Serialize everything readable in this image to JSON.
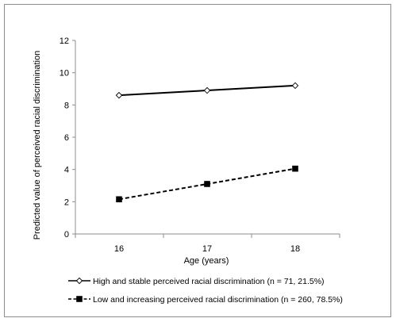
{
  "chart_data": {
    "type": "line",
    "title": "",
    "xlabel": "Age (years)",
    "ylabel": "Predicted  value of perceived racial discrimination",
    "x": [
      16,
      17,
      18
    ],
    "x_tick_labels": [
      "16",
      "17",
      "18"
    ],
    "ylim": [
      0,
      12
    ],
    "y_ticks": [
      0,
      2,
      4,
      6,
      8,
      10,
      12
    ],
    "y_tick_labels": [
      "0",
      "2",
      "4",
      "6",
      "8",
      "10",
      "12"
    ],
    "grid": false,
    "legend_position": "bottom",
    "series": [
      {
        "name": "High and stable perceived racial discrimination (n = 71, 21.5%)",
        "values": [
          8.6,
          8.9,
          9.2
        ],
        "line_style": "solid",
        "marker": "open-diamond",
        "color": "#000000"
      },
      {
        "name": "Low and increasing perceived  racial discrimination (n = 260, 78.5%)",
        "values": [
          2.15,
          3.1,
          4.05
        ],
        "line_style": "dashed",
        "marker": "filled-square",
        "color": "#000000"
      }
    ]
  }
}
